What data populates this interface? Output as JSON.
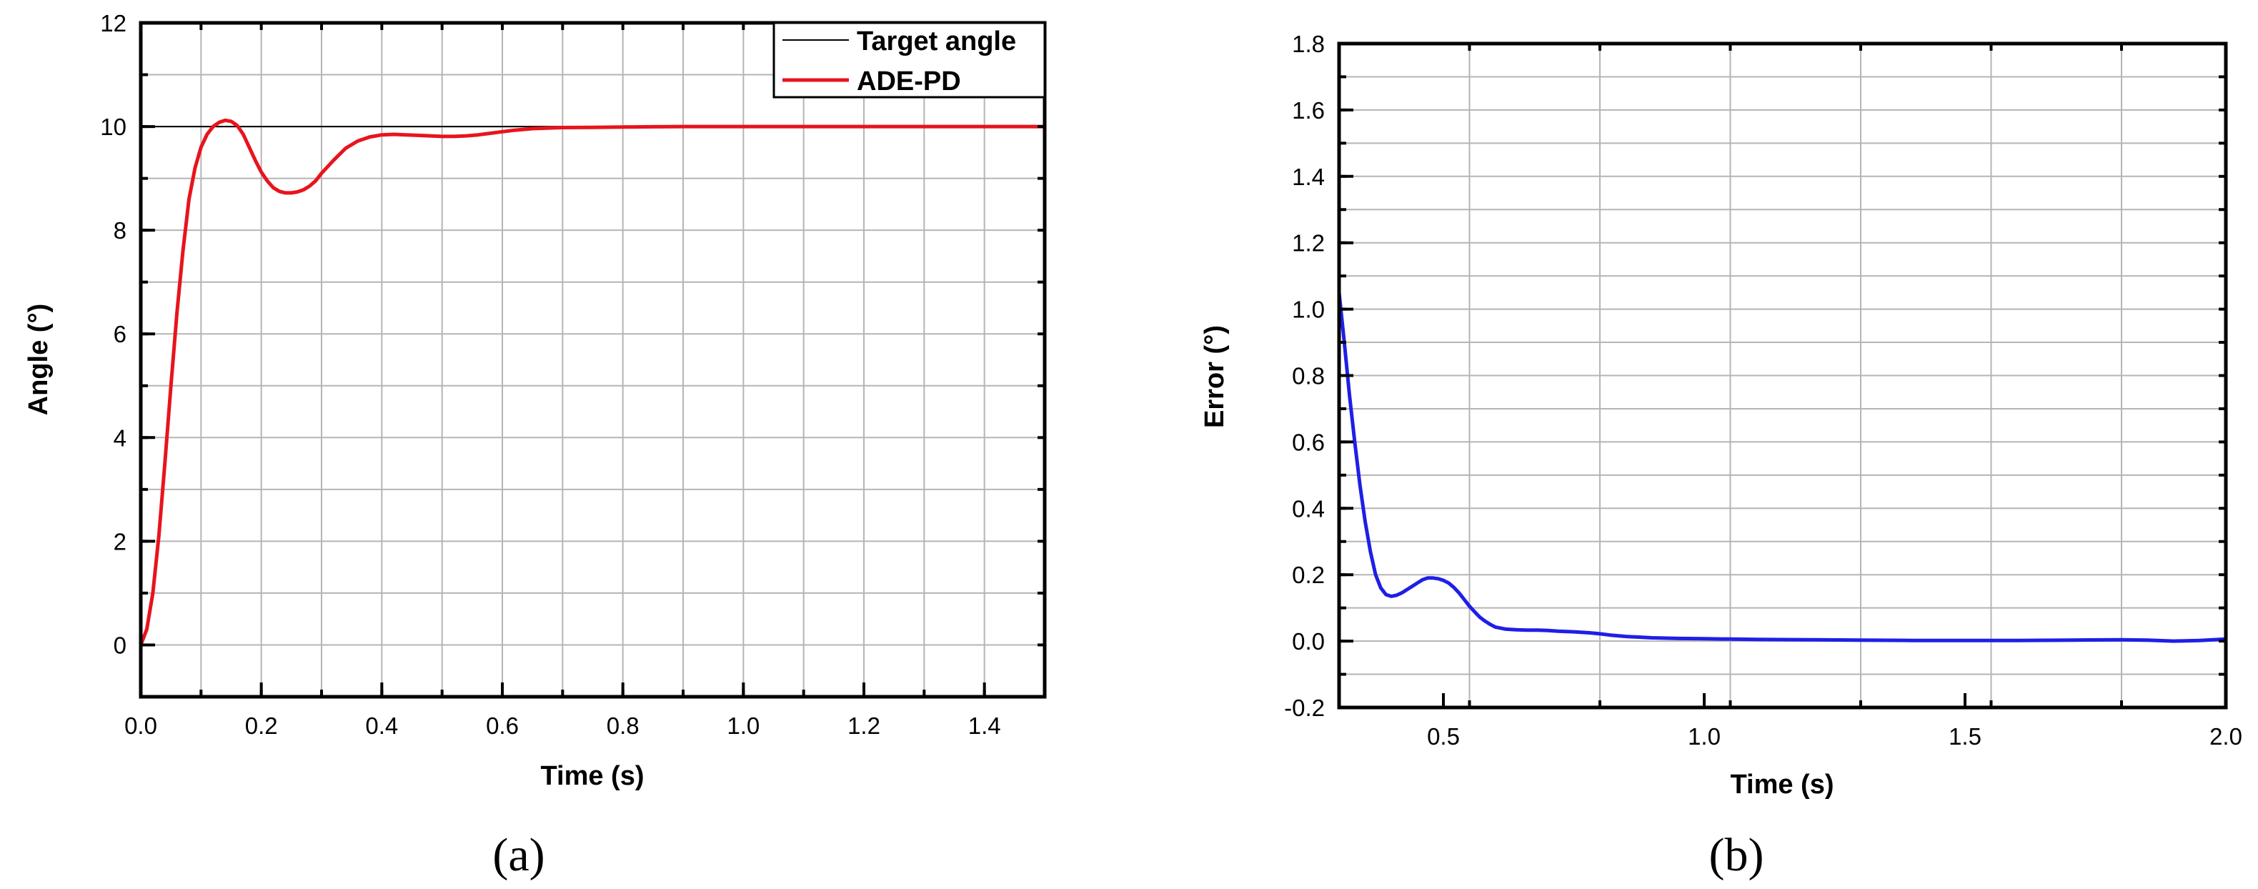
{
  "chart_data": [
    {
      "type": "line",
      "caption": "(a)",
      "xlabel": "Time (s)",
      "ylabel": "Angle (°)",
      "xlim": [
        0,
        1.5
      ],
      "ylim": [
        -1,
        12
      ],
      "xticks": [
        "0.0",
        "0.2",
        "0.4",
        "0.6",
        "0.8",
        "1.0",
        "1.2",
        "1.4"
      ],
      "yticks": [
        "0",
        "2",
        "4",
        "6",
        "8",
        "10",
        "12"
      ],
      "grid": true,
      "legend_position": "top-right",
      "series": [
        {
          "name": "Target angle",
          "color": "#000000",
          "x": [
            0.0,
            1.5
          ],
          "y": [
            10,
            10
          ]
        },
        {
          "name": "ADE-PD",
          "color": "#e8141c",
          "x": [
            0.0,
            0.01,
            0.02,
            0.03,
            0.04,
            0.05,
            0.06,
            0.07,
            0.08,
            0.09,
            0.1,
            0.11,
            0.12,
            0.13,
            0.14,
            0.15,
            0.16,
            0.17,
            0.18,
            0.19,
            0.2,
            0.21,
            0.22,
            0.23,
            0.24,
            0.25,
            0.26,
            0.27,
            0.28,
            0.29,
            0.3,
            0.32,
            0.34,
            0.36,
            0.38,
            0.4,
            0.42,
            0.44,
            0.46,
            0.48,
            0.5,
            0.52,
            0.54,
            0.56,
            0.58,
            0.6,
            0.62,
            0.65,
            0.7,
            0.75,
            0.8,
            0.85,
            0.9,
            1.0,
            1.1,
            1.2,
            1.3,
            1.4,
            1.5
          ],
          "y": [
            0.0,
            0.3,
            1.0,
            2.1,
            3.5,
            5.0,
            6.4,
            7.6,
            8.6,
            9.2,
            9.6,
            9.85,
            10.0,
            10.08,
            10.12,
            10.1,
            10.02,
            9.85,
            9.6,
            9.35,
            9.12,
            8.95,
            8.82,
            8.75,
            8.72,
            8.72,
            8.74,
            8.78,
            8.85,
            8.95,
            9.1,
            9.35,
            9.58,
            9.72,
            9.8,
            9.84,
            9.85,
            9.84,
            9.83,
            9.82,
            9.81,
            9.81,
            9.82,
            9.84,
            9.87,
            9.9,
            9.93,
            9.96,
            9.98,
            9.985,
            9.99,
            9.995,
            10.0,
            10.0,
            10.0,
            10.0,
            10.0,
            10.0,
            10.0
          ]
        }
      ]
    },
    {
      "type": "line",
      "caption": "(b)",
      "xlabel": "Time (s)",
      "ylabel": "Error (°)",
      "xlim": [
        0.3,
        2.0
      ],
      "ylim": [
        -0.2,
        1.8
      ],
      "xticks": [
        "0.5",
        "1.0",
        "1.5",
        "2.0"
      ],
      "yticks": [
        "-0.2",
        "0.0",
        "0.2",
        "0.4",
        "0.6",
        "0.8",
        "1.0",
        "1.2",
        "1.4",
        "1.6",
        "1.8"
      ],
      "grid": true,
      "series": [
        {
          "color": "#1f1fe6",
          "x": [
            0.3,
            0.31,
            0.32,
            0.33,
            0.34,
            0.35,
            0.36,
            0.37,
            0.38,
            0.39,
            0.4,
            0.41,
            0.42,
            0.43,
            0.44,
            0.45,
            0.46,
            0.47,
            0.48,
            0.49,
            0.5,
            0.51,
            0.52,
            0.53,
            0.54,
            0.55,
            0.56,
            0.57,
            0.58,
            0.59,
            0.6,
            0.62,
            0.64,
            0.66,
            0.68,
            0.7,
            0.72,
            0.75,
            0.78,
            0.8,
            0.82,
            0.85,
            0.9,
            0.95,
            1.0,
            1.1,
            1.2,
            1.3,
            1.4,
            1.5,
            1.6,
            1.7,
            1.8,
            1.85,
            1.9,
            1.95,
            2.0
          ],
          "y": [
            1.05,
            0.9,
            0.74,
            0.6,
            0.47,
            0.36,
            0.27,
            0.2,
            0.16,
            0.14,
            0.135,
            0.138,
            0.145,
            0.155,
            0.165,
            0.175,
            0.185,
            0.19,
            0.19,
            0.188,
            0.183,
            0.175,
            0.162,
            0.145,
            0.125,
            0.105,
            0.088,
            0.072,
            0.06,
            0.05,
            0.042,
            0.036,
            0.034,
            0.033,
            0.033,
            0.032,
            0.03,
            0.028,
            0.025,
            0.022,
            0.018,
            0.014,
            0.01,
            0.008,
            0.007,
            0.005,
            0.004,
            0.003,
            0.002,
            0.002,
            0.002,
            0.003,
            0.004,
            0.003,
            0.0,
            0.002,
            0.006
          ]
        }
      ]
    }
  ]
}
